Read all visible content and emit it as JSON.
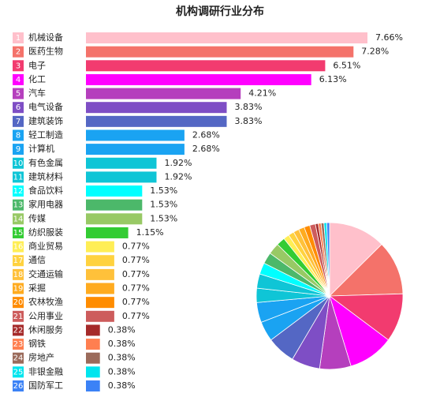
{
  "chart_data": {
    "type": "bar",
    "title": "机构调研行业分布",
    "inset_pie": true,
    "ranks": [
      1,
      2,
      3,
      4,
      5,
      6,
      7,
      8,
      9,
      10,
      11,
      12,
      13,
      14,
      15,
      16,
      17,
      18,
      19,
      20,
      21,
      22,
      23,
      24,
      25,
      26
    ],
    "categories": [
      "机械设备",
      "医药生物",
      "电子",
      "化工",
      "汽车",
      "电气设备",
      "建筑装饰",
      "轻工制造",
      "计算机",
      "有色金属",
      "建筑材料",
      "食品饮料",
      "家用电器",
      "传媒",
      "纺织服装",
      "商业贸易",
      "通信",
      "交通运输",
      "采掘",
      "农林牧渔",
      "公用事业",
      "休闲服务",
      "钢铁",
      "房地产",
      "非银金融",
      "国防军工"
    ],
    "values": [
      7.66,
      7.28,
      6.51,
      6.13,
      4.21,
      3.83,
      3.83,
      2.68,
      2.68,
      1.92,
      1.92,
      1.53,
      1.53,
      1.53,
      1.15,
      0.77,
      0.77,
      0.77,
      0.77,
      0.77,
      0.77,
      0.38,
      0.38,
      0.38,
      0.38,
      0.38
    ],
    "value_labels": [
      "7.66%",
      "7.28%",
      "6.51%",
      "6.13%",
      "4.21%",
      "3.83%",
      "3.83%",
      "2.68%",
      "2.68%",
      "1.92%",
      "1.92%",
      "1.53%",
      "1.53%",
      "1.53%",
      "1.15%",
      "0.77%",
      "0.77%",
      "0.77%",
      "0.77%",
      "0.77%",
      "0.77%",
      "0.38%",
      "0.38%",
      "0.38%",
      "0.38%",
      "0.38%"
    ],
    "colors": [
      "#ffc0cb",
      "#f4726a",
      "#f23b6f",
      "#ff00ff",
      "#b53fbd",
      "#7e4ec5",
      "#5467c4",
      "#1aa3f2",
      "#1aa3f2",
      "#0fc5d6",
      "#0fc5d6",
      "#00ffff",
      "#4cb86a",
      "#98c965",
      "#33cc33",
      "#ffee55",
      "#ffd23f",
      "#ffc13a",
      "#ffab1f",
      "#ff8c00",
      "#cd5c5c",
      "#a52a2a",
      "#ff7f50",
      "#9b6b5b",
      "#00e5ee",
      "#3b82f6"
    ]
  }
}
